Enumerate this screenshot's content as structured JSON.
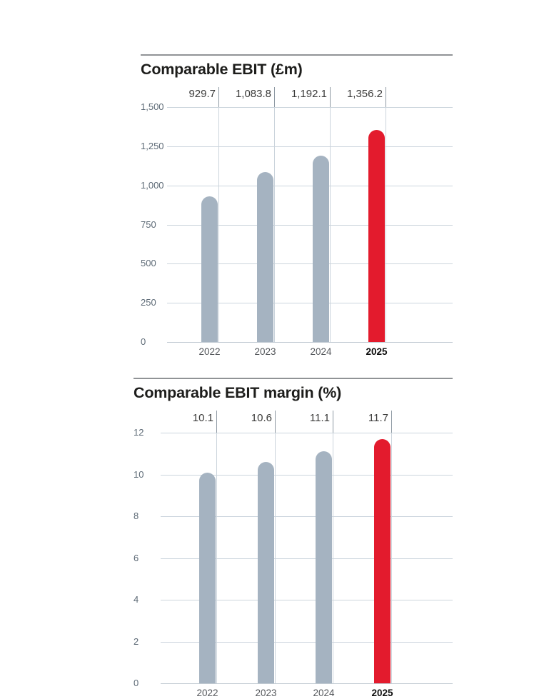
{
  "page": {
    "background_color": "#ffffff"
  },
  "chart_data": [
    {
      "type": "bar",
      "title": "Comparable EBIT (£m)",
      "categories": [
        "2022",
        "2023",
        "2024",
        "2025"
      ],
      "values": [
        929.7,
        1083.8,
        1192.1,
        1356.2
      ],
      "value_labels": [
        "929.7",
        "1,083.8",
        "1,192.1",
        "1,356.2"
      ],
      "y_axis": {
        "tick_labels": [
          "1,500",
          "1,250",
          "1,000",
          "750",
          "500",
          "250",
          "0"
        ],
        "range": [
          0,
          1500
        ]
      },
      "xlabel": "",
      "ylabel": "",
      "grid": true,
      "legend": "none",
      "highlight_index": 3,
      "highlight_category": "2025",
      "colors": {
        "bar": "#a5b3c1",
        "highlight": "#e31b2d"
      }
    },
    {
      "type": "bar",
      "title": "Comparable EBIT margin (%)",
      "categories": [
        "2022",
        "2023",
        "2024",
        "2025"
      ],
      "values": [
        10.1,
        10.6,
        11.1,
        11.7
      ],
      "value_labels": [
        "10.1",
        "10.6",
        "11.1",
        "11.7"
      ],
      "y_axis": {
        "tick_labels": [
          "12",
          "10",
          "8",
          "6",
          "4",
          "2",
          "0"
        ],
        "range": [
          0,
          12
        ]
      },
      "xlabel": "",
      "ylabel": "",
      "grid": true,
      "legend": "none",
      "highlight_index": 3,
      "highlight_category": "2025",
      "colors": {
        "bar": "#a5b3c1",
        "highlight": "#e31b2d"
      }
    }
  ]
}
